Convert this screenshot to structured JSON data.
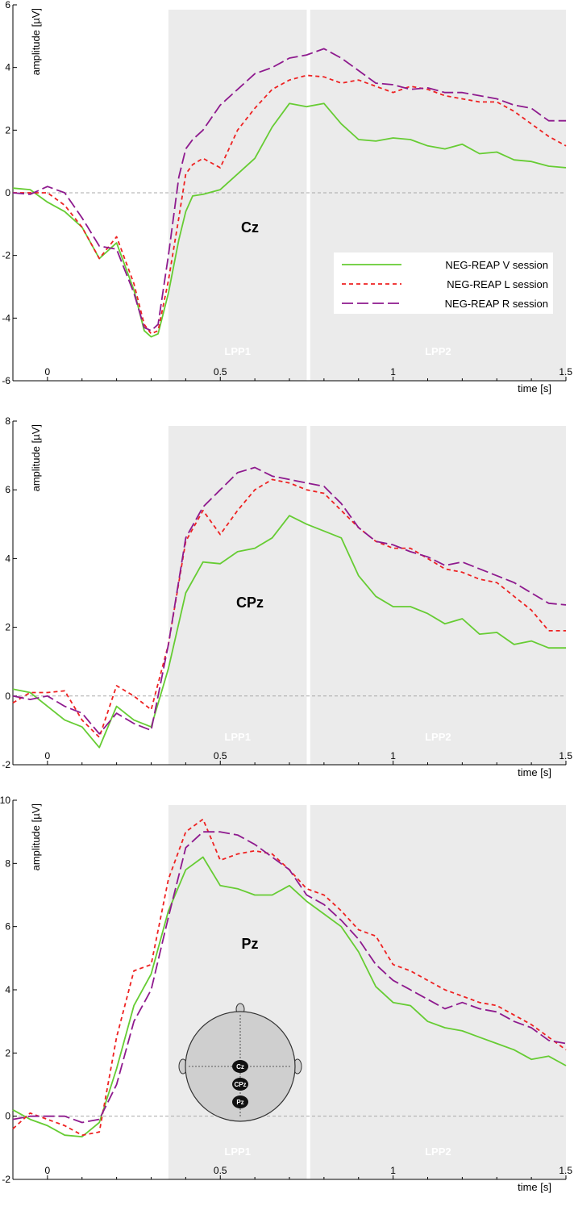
{
  "colors": {
    "V": "#66cc33",
    "L": "#ee2222",
    "R": "#8e1a8e",
    "window_fill": "#ebebeb",
    "zero_line": "#aaaaaa"
  },
  "chart_data": [
    {
      "type": "line",
      "channel_label": "Cz",
      "xlabel": "time [s]",
      "ylabel": "amplitude [µV]",
      "xlim": [
        -0.1,
        1.5
      ],
      "ylim": [
        -6,
        6
      ],
      "xticks": [
        0,
        0.5,
        1,
        1.5
      ],
      "xtick_labels": [
        "0",
        "0.5",
        "1",
        "1.5"
      ],
      "yticks": [
        -6,
        -4,
        -2,
        0,
        2,
        4,
        6
      ],
      "ytick_labels": [
        "-6",
        "-4",
        "-2",
        "0",
        "2",
        "4",
        "6"
      ],
      "windows": [
        {
          "label": "LPP1",
          "start": 0.35,
          "end": 0.75
        },
        {
          "label": "LPP2",
          "start": 0.76,
          "end": 1.5
        }
      ],
      "legend": {
        "placement": "right",
        "entries": [
          "NEG-REAP V session",
          "NEG-REAP L session",
          "NEG-REAP R session"
        ]
      },
      "series": [
        {
          "key": "V",
          "name": "NEG-REAP V session",
          "style": "solid",
          "x": [
            -0.1,
            -0.05,
            0,
            0.05,
            0.1,
            0.15,
            0.2,
            0.25,
            0.28,
            0.3,
            0.32,
            0.35,
            0.38,
            0.4,
            0.42,
            0.45,
            0.5,
            0.55,
            0.6,
            0.65,
            0.7,
            0.75,
            0.8,
            0.85,
            0.9,
            0.95,
            1,
            1.05,
            1.1,
            1.15,
            1.2,
            1.25,
            1.3,
            1.35,
            1.4,
            1.45,
            1.5
          ],
          "y": [
            0.15,
            0.1,
            -0.3,
            -0.6,
            -1.1,
            -2.1,
            -1.6,
            -3.1,
            -4.4,
            -4.6,
            -4.5,
            -3.2,
            -1.5,
            -0.6,
            -0.1,
            -0.05,
            0.1,
            0.6,
            1.1,
            2.1,
            2.85,
            2.75,
            2.85,
            2.2,
            1.7,
            1.65,
            1.75,
            1.7,
            1.5,
            1.4,
            1.55,
            1.25,
            1.3,
            1.05,
            1.0,
            0.85,
            0.8
          ]
        },
        {
          "key": "L",
          "name": "NEG-REAP L session",
          "style": "dotted",
          "x": [
            -0.1,
            -0.05,
            0,
            0.05,
            0.1,
            0.15,
            0.2,
            0.25,
            0.28,
            0.3,
            0.32,
            0.35,
            0.38,
            0.4,
            0.42,
            0.45,
            0.5,
            0.55,
            0.6,
            0.65,
            0.7,
            0.75,
            0.8,
            0.85,
            0.9,
            0.95,
            1,
            1.05,
            1.1,
            1.15,
            1.2,
            1.25,
            1.3,
            1.35,
            1.4,
            1.45,
            1.5
          ],
          "y": [
            0.0,
            0.0,
            0.0,
            -0.4,
            -1.1,
            -2.1,
            -1.4,
            -2.9,
            -4.2,
            -4.5,
            -4.4,
            -2.8,
            -0.8,
            0.6,
            0.9,
            1.1,
            0.8,
            2.0,
            2.7,
            3.3,
            3.6,
            3.75,
            3.7,
            3.5,
            3.6,
            3.4,
            3.2,
            3.4,
            3.3,
            3.1,
            3.0,
            2.9,
            2.9,
            2.6,
            2.2,
            1.8,
            1.5
          ]
        },
        {
          "key": "R",
          "name": "NEG-REAP R session",
          "style": "dashed",
          "x": [
            -0.1,
            -0.05,
            0,
            0.05,
            0.1,
            0.15,
            0.2,
            0.25,
            0.28,
            0.3,
            0.32,
            0.35,
            0.38,
            0.4,
            0.42,
            0.45,
            0.5,
            0.55,
            0.6,
            0.65,
            0.7,
            0.75,
            0.8,
            0.85,
            0.9,
            0.95,
            1,
            1.05,
            1.1,
            1.15,
            1.2,
            1.25,
            1.3,
            1.35,
            1.4,
            1.45,
            1.5
          ],
          "y": [
            0.0,
            -0.05,
            0.2,
            0.0,
            -0.8,
            -1.7,
            -1.8,
            -3.2,
            -4.3,
            -4.4,
            -4.2,
            -2.0,
            0.5,
            1.4,
            1.7,
            2.0,
            2.8,
            3.3,
            3.8,
            4.0,
            4.3,
            4.4,
            4.6,
            4.3,
            3.9,
            3.5,
            3.45,
            3.3,
            3.35,
            3.2,
            3.2,
            3.1,
            3.0,
            2.8,
            2.7,
            2.3,
            2.3
          ]
        }
      ]
    },
    {
      "type": "line",
      "channel_label": "CPz",
      "xlabel": "time [s]",
      "ylabel": "amplitude [µV]",
      "xlim": [
        -0.1,
        1.5
      ],
      "ylim": [
        -2,
        8
      ],
      "xticks": [
        0,
        0.5,
        1,
        1.5
      ],
      "xtick_labels": [
        "0",
        "0.5",
        "1",
        "1.5"
      ],
      "yticks": [
        -2,
        0,
        2,
        4,
        6,
        8
      ],
      "ytick_labels": [
        "-2",
        "0",
        "2",
        "4",
        "6",
        "8"
      ],
      "windows": [
        {
          "label": "LPP1",
          "start": 0.35,
          "end": 0.75
        },
        {
          "label": "LPP2",
          "start": 0.76,
          "end": 1.5
        }
      ],
      "series": [
        {
          "key": "V",
          "name": "NEG-REAP V session",
          "style": "solid",
          "x": [
            -0.1,
            -0.05,
            0,
            0.05,
            0.1,
            0.15,
            0.2,
            0.25,
            0.3,
            0.35,
            0.4,
            0.45,
            0.5,
            0.55,
            0.6,
            0.65,
            0.7,
            0.75,
            0.8,
            0.85,
            0.9,
            0.95,
            1,
            1.05,
            1.1,
            1.15,
            1.2,
            1.25,
            1.3,
            1.35,
            1.4,
            1.45,
            1.5
          ],
          "y": [
            0.2,
            0.1,
            -0.3,
            -0.7,
            -0.9,
            -1.5,
            -0.3,
            -0.7,
            -0.9,
            0.8,
            3.0,
            3.9,
            3.85,
            4.2,
            4.3,
            4.6,
            5.25,
            5.0,
            4.8,
            4.6,
            3.5,
            2.9,
            2.6,
            2.6,
            2.4,
            2.1,
            2.25,
            1.8,
            1.85,
            1.5,
            1.6,
            1.4,
            1.4
          ]
        },
        {
          "key": "L",
          "name": "NEG-REAP L session",
          "style": "dotted",
          "x": [
            -0.1,
            -0.05,
            0,
            0.05,
            0.1,
            0.15,
            0.2,
            0.25,
            0.3,
            0.35,
            0.4,
            0.45,
            0.5,
            0.55,
            0.6,
            0.65,
            0.7,
            0.75,
            0.8,
            0.85,
            0.9,
            0.95,
            1,
            1.05,
            1.1,
            1.15,
            1.2,
            1.25,
            1.3,
            1.35,
            1.4,
            1.45,
            1.5
          ],
          "y": [
            -0.2,
            0.1,
            0.1,
            0.15,
            -0.7,
            -1.2,
            0.3,
            0.0,
            -0.4,
            1.5,
            4.5,
            5.4,
            4.7,
            5.4,
            6.0,
            6.3,
            6.2,
            6.0,
            5.9,
            5.4,
            4.9,
            4.5,
            4.3,
            4.3,
            4.0,
            3.7,
            3.6,
            3.4,
            3.3,
            2.9,
            2.5,
            1.9,
            1.9
          ]
        },
        {
          "key": "R",
          "name": "NEG-REAP R session",
          "style": "dashed",
          "x": [
            -0.1,
            -0.05,
            0,
            0.05,
            0.1,
            0.15,
            0.2,
            0.25,
            0.3,
            0.35,
            0.4,
            0.45,
            0.5,
            0.55,
            0.6,
            0.65,
            0.7,
            0.75,
            0.8,
            0.85,
            0.9,
            0.95,
            1,
            1.05,
            1.1,
            1.15,
            1.2,
            1.25,
            1.3,
            1.35,
            1.4,
            1.45,
            1.5
          ],
          "y": [
            0.0,
            -0.1,
            0.0,
            -0.3,
            -0.5,
            -1.1,
            -0.5,
            -0.8,
            -1.0,
            1.5,
            4.6,
            5.5,
            6.0,
            6.5,
            6.65,
            6.4,
            6.3,
            6.2,
            6.1,
            5.6,
            4.9,
            4.5,
            4.4,
            4.2,
            4.05,
            3.8,
            3.9,
            3.7,
            3.5,
            3.3,
            3.0,
            2.7,
            2.65
          ]
        }
      ]
    },
    {
      "type": "line",
      "channel_label": "Pz",
      "xlabel": "time [s]",
      "ylabel": "amplitude [µV]",
      "xlim": [
        -0.1,
        1.5
      ],
      "ylim": [
        -2,
        10
      ],
      "xticks": [
        0,
        0.5,
        1,
        1.5
      ],
      "xtick_labels": [
        "0",
        "0.5",
        "1",
        "1.5"
      ],
      "yticks": [
        -2,
        0,
        2,
        4,
        6,
        8,
        10
      ],
      "ytick_labels": [
        "-2",
        "0",
        "2",
        "4",
        "6",
        "8",
        "10"
      ],
      "windows": [
        {
          "label": "LPP1",
          "start": 0.35,
          "end": 0.75
        },
        {
          "label": "LPP2",
          "start": 0.76,
          "end": 1.5
        }
      ],
      "electrodes": [
        "Cz",
        "CPz",
        "Pz"
      ],
      "series": [
        {
          "key": "V",
          "name": "NEG-REAP V session",
          "style": "solid",
          "x": [
            -0.1,
            -0.05,
            0,
            0.05,
            0.1,
            0.15,
            0.2,
            0.25,
            0.3,
            0.35,
            0.4,
            0.45,
            0.5,
            0.55,
            0.6,
            0.65,
            0.7,
            0.75,
            0.8,
            0.85,
            0.9,
            0.95,
            1,
            1.05,
            1.1,
            1.15,
            1.2,
            1.25,
            1.3,
            1.35,
            1.4,
            1.45,
            1.5
          ],
          "y": [
            0.2,
            -0.1,
            -0.3,
            -0.6,
            -0.65,
            -0.2,
            1.5,
            3.5,
            4.5,
            6.5,
            7.8,
            8.2,
            7.3,
            7.2,
            7.0,
            7.0,
            7.3,
            6.8,
            6.4,
            6.0,
            5.2,
            4.1,
            3.6,
            3.5,
            3.0,
            2.8,
            2.7,
            2.5,
            2.3,
            2.1,
            1.8,
            1.9,
            1.6
          ]
        },
        {
          "key": "L",
          "name": "NEG-REAP L session",
          "style": "dotted",
          "x": [
            -0.1,
            -0.05,
            0,
            0.05,
            0.1,
            0.15,
            0.2,
            0.25,
            0.3,
            0.35,
            0.4,
            0.45,
            0.5,
            0.55,
            0.6,
            0.65,
            0.7,
            0.75,
            0.8,
            0.85,
            0.9,
            0.95,
            1,
            1.05,
            1.1,
            1.15,
            1.2,
            1.25,
            1.3,
            1.35,
            1.4,
            1.45,
            1.5
          ],
          "y": [
            -0.4,
            0.1,
            -0.1,
            -0.3,
            -0.6,
            -0.5,
            2.5,
            4.6,
            4.8,
            7.5,
            9.0,
            9.4,
            8.1,
            8.3,
            8.4,
            8.3,
            7.8,
            7.2,
            7.0,
            6.5,
            5.9,
            5.7,
            4.8,
            4.6,
            4.3,
            4.0,
            3.8,
            3.6,
            3.5,
            3.2,
            2.9,
            2.5,
            2.1
          ]
        },
        {
          "key": "R",
          "name": "NEG-REAP R session",
          "style": "dashed",
          "x": [
            -0.1,
            -0.05,
            0,
            0.05,
            0.1,
            0.15,
            0.2,
            0.25,
            0.3,
            0.35,
            0.4,
            0.45,
            0.5,
            0.55,
            0.6,
            0.65,
            0.7,
            0.75,
            0.8,
            0.85,
            0.9,
            0.95,
            1,
            1.05,
            1.1,
            1.15,
            1.2,
            1.25,
            1.3,
            1.35,
            1.4,
            1.45,
            1.5
          ],
          "y": [
            -0.1,
            0.0,
            0.0,
            0.0,
            -0.2,
            -0.1,
            1.0,
            3.0,
            4.0,
            6.3,
            8.5,
            9.0,
            9.0,
            8.9,
            8.6,
            8.2,
            7.8,
            7.0,
            6.7,
            6.2,
            5.6,
            4.8,
            4.3,
            4.0,
            3.7,
            3.4,
            3.6,
            3.4,
            3.3,
            3.0,
            2.8,
            2.4,
            2.3
          ]
        }
      ]
    }
  ]
}
